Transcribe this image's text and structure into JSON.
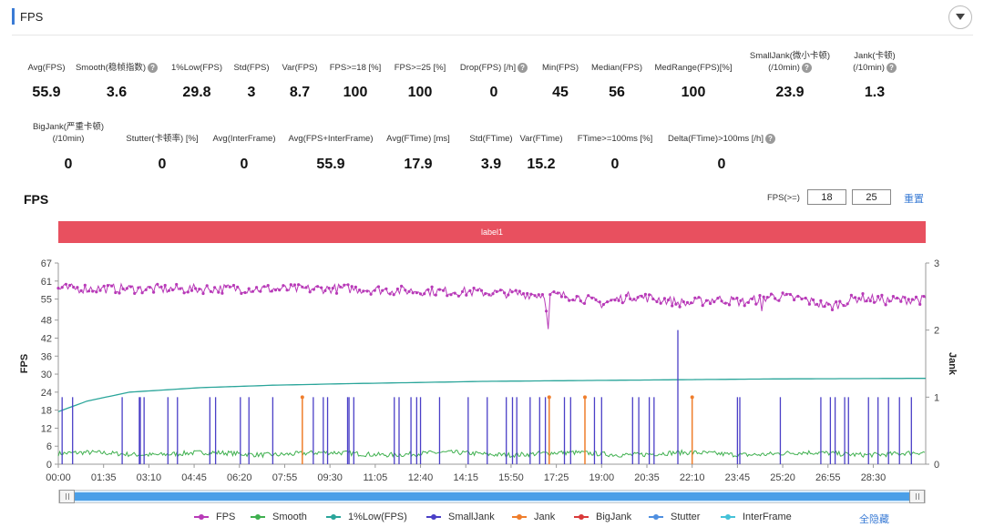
{
  "header": {
    "title": "FPS"
  },
  "metrics_row1": [
    {
      "label": "Avg(FPS)",
      "value": "55.9",
      "help": false
    },
    {
      "label": "Smooth(稳帧指数)",
      "value": "3.6",
      "help": true
    },
    {
      "label": "1%Low(FPS)",
      "value": "29.8",
      "help": false
    },
    {
      "label": "Std(FPS)",
      "value": "3",
      "help": false
    },
    {
      "label": "Var(FPS)",
      "value": "8.7",
      "help": false
    },
    {
      "label": "FPS>=18 [%]",
      "value": "100",
      "help": false
    },
    {
      "label": "FPS>=25 [%]",
      "value": "100",
      "help": false
    },
    {
      "label": "Drop(FPS) [/h]",
      "value": "0",
      "help": true
    },
    {
      "label": "Min(FPS)",
      "value": "45",
      "help": false
    },
    {
      "label": "Median(FPS)",
      "value": "56",
      "help": false
    },
    {
      "label": "MedRange(FPS)[%]",
      "value": "100",
      "help": false
    },
    {
      "label": "SmallJank(微小卡顿)",
      "label2": "(/10min)",
      "value": "23.9",
      "help": true
    },
    {
      "label": "Jank(卡顿)",
      "label2": "(/10min)",
      "value": "1.3",
      "help": true
    }
  ],
  "metrics_row2": [
    {
      "label": "BigJank(严重卡顿)",
      "label2": "(/10min)",
      "value": "0",
      "help": false
    },
    {
      "label": "Stutter(卡顿率) [%]",
      "value": "0",
      "help": false
    },
    {
      "label": "Avg(InterFrame)",
      "value": "0",
      "help": false
    },
    {
      "label": "Avg(FPS+InterFrame)",
      "value": "55.9",
      "help": false
    },
    {
      "label": "Avg(FTime) [ms]",
      "value": "17.9",
      "help": false
    },
    {
      "label": "Std(FTime)",
      "value": "3.9",
      "help": false
    },
    {
      "label": "Var(FTime)",
      "value": "15.2",
      "help": false
    },
    {
      "label": "FTime>=100ms [%]",
      "value": "0",
      "help": false
    },
    {
      "label": "Delta(FTime)>100ms [/h]",
      "value": "0",
      "help": true
    }
  ],
  "fps_section": {
    "title": "FPS",
    "threshold_label": "FPS(>=)",
    "threshold1": "18",
    "threshold2": "25",
    "reset_label": "重置",
    "band_label": "label1",
    "hide_all_label": "全隐藏"
  },
  "colors": {
    "fps": "#b83ab8",
    "smooth": "#3fb04f",
    "low1": "#2aa59a",
    "smalljank": "#4a3fc7",
    "jank": "#ef7d2b",
    "bigjank": "#d93a3a",
    "stutter": "#4f8fe0",
    "interframe": "#45c2d8",
    "band": "#e8505f",
    "accent": "#3a7bd5"
  },
  "chart_data": {
    "type": "line",
    "title": "FPS",
    "ylabel": "FPS",
    "y2label": "Jank",
    "ylim": [
      0,
      67
    ],
    "y2lim": [
      0,
      3
    ],
    "yticks": [
      0,
      6,
      12,
      18,
      24,
      30,
      36,
      42,
      48,
      55,
      61,
      67
    ],
    "y2ticks": [
      0,
      1,
      2,
      3
    ],
    "x_range_seconds": [
      0,
      1820
    ],
    "xtick_labels": [
      "00:00",
      "01:35",
      "03:10",
      "04:45",
      "06:20",
      "07:55",
      "09:30",
      "11:05",
      "12:40",
      "14:15",
      "15:50",
      "17:25",
      "19:00",
      "20:35",
      "22:10",
      "23:45",
      "25:20",
      "26:55",
      "28:30"
    ],
    "legend": [
      "FPS",
      "Smooth",
      "1%Low(FPS)",
      "SmallJank",
      "Jank",
      "BigJank",
      "Stutter",
      "InterFrame"
    ],
    "fps_anchor_t": [
      0,
      120,
      240,
      360,
      480,
      600,
      720,
      840,
      960,
      1080,
      1140,
      1200,
      1260,
      1320,
      1380,
      1440,
      1500,
      1560,
      1620,
      1680,
      1740,
      1800,
      1820
    ],
    "fps_anchor_v": [
      58.5,
      58.5,
      58.3,
      58.5,
      58.3,
      58.5,
      57.8,
      57.5,
      56.8,
      56.0,
      53.5,
      56.0,
      55.0,
      53.5,
      55.0,
      54.0,
      56.0,
      55.0,
      52.5,
      55.5,
      54.5,
      55.0,
      54.5
    ],
    "fps_dips": [
      {
        "t": 1025,
        "v": 51
      },
      {
        "t": 1028,
        "v": 45
      },
      {
        "t": 1300,
        "v": 54
      },
      {
        "t": 1475,
        "v": 51
      }
    ],
    "low1_anchor_t": [
      0,
      60,
      150,
      300,
      450,
      600,
      900,
      1200,
      1500,
      1820
    ],
    "low1_anchor_v": [
      17.5,
      21,
      24,
      25.5,
      26.3,
      26.8,
      27.6,
      28.0,
      28.4,
      28.6
    ],
    "smooth_base": 3.5,
    "smalljank_t": [
      8,
      30,
      134,
      170,
      172,
      180,
      230,
      250,
      318,
      330,
      382,
      400,
      450,
      535,
      556,
      565,
      607,
      610,
      620,
      705,
      715,
      740,
      752,
      760,
      800,
      860,
      900,
      940,
      953,
      962,
      990,
      1010,
      1022,
      1062,
      1075,
      1125,
      1140,
      1205,
      1218,
      1240,
      1250,
      1300,
      1425,
      1430,
      1515,
      1600,
      1620,
      1630,
      1650,
      1658,
      1700,
      1720,
      1742,
      1765,
      1790
    ],
    "smalljank_h": [
      1,
      1,
      1,
      1,
      1,
      1,
      1,
      1,
      1,
      1,
      1,
      1,
      1,
      1,
      1,
      1,
      1,
      1,
      1,
      1,
      1,
      1,
      1,
      1,
      1,
      1,
      1,
      1,
      1,
      1,
      1,
      1,
      1,
      1,
      1,
      1,
      1,
      1,
      1,
      1,
      1,
      2,
      1,
      1,
      1,
      1,
      1,
      1,
      1,
      1,
      1,
      1,
      1,
      1,
      1
    ],
    "jank_t": [
      512,
      1030,
      1105,
      1330
    ],
    "jank_h": [
      1,
      1,
      1,
      1
    ],
    "bigjank_t": [],
    "stutter_t": [],
    "interframe_t": []
  }
}
